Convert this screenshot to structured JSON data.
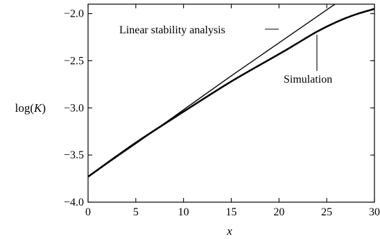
{
  "chart_data": {
    "type": "line",
    "xlabel": "x",
    "ylabel": "log(K)",
    "xlim": [
      0,
      30
    ],
    "ylim": [
      -4.0,
      -1.9
    ],
    "xticks": [
      0,
      5,
      10,
      15,
      20,
      25,
      30
    ],
    "yticks": [
      -4.0,
      -3.5,
      -3.0,
      -2.5,
      -2.0
    ],
    "xtick_labels": [
      "0",
      "5",
      "10",
      "15",
      "20",
      "25",
      "30"
    ],
    "ytick_labels": [
      "−4.0",
      "−3.5",
      "−3.0",
      "−2.5",
      "−2.0"
    ],
    "grid": false,
    "series": [
      {
        "name": "Linear stability analysis",
        "x": [
          0,
          5,
          10,
          15,
          20,
          25,
          26.3
        ],
        "y": [
          -3.73,
          -3.38,
          -3.02,
          -2.66,
          -2.31,
          -1.96,
          -1.87
        ]
      },
      {
        "name": "Simulation",
        "x": [
          0,
          5,
          10,
          15,
          20,
          22,
          24,
          26,
          28,
          30
        ],
        "y": [
          -3.73,
          -3.37,
          -3.04,
          -2.72,
          -2.43,
          -2.31,
          -2.19,
          -2.09,
          -2.01,
          -1.95
        ]
      }
    ],
    "annotations": [
      {
        "text": "Linear stability analysis",
        "series": 0
      },
      {
        "text": "Simulation",
        "series": 1
      }
    ]
  }
}
